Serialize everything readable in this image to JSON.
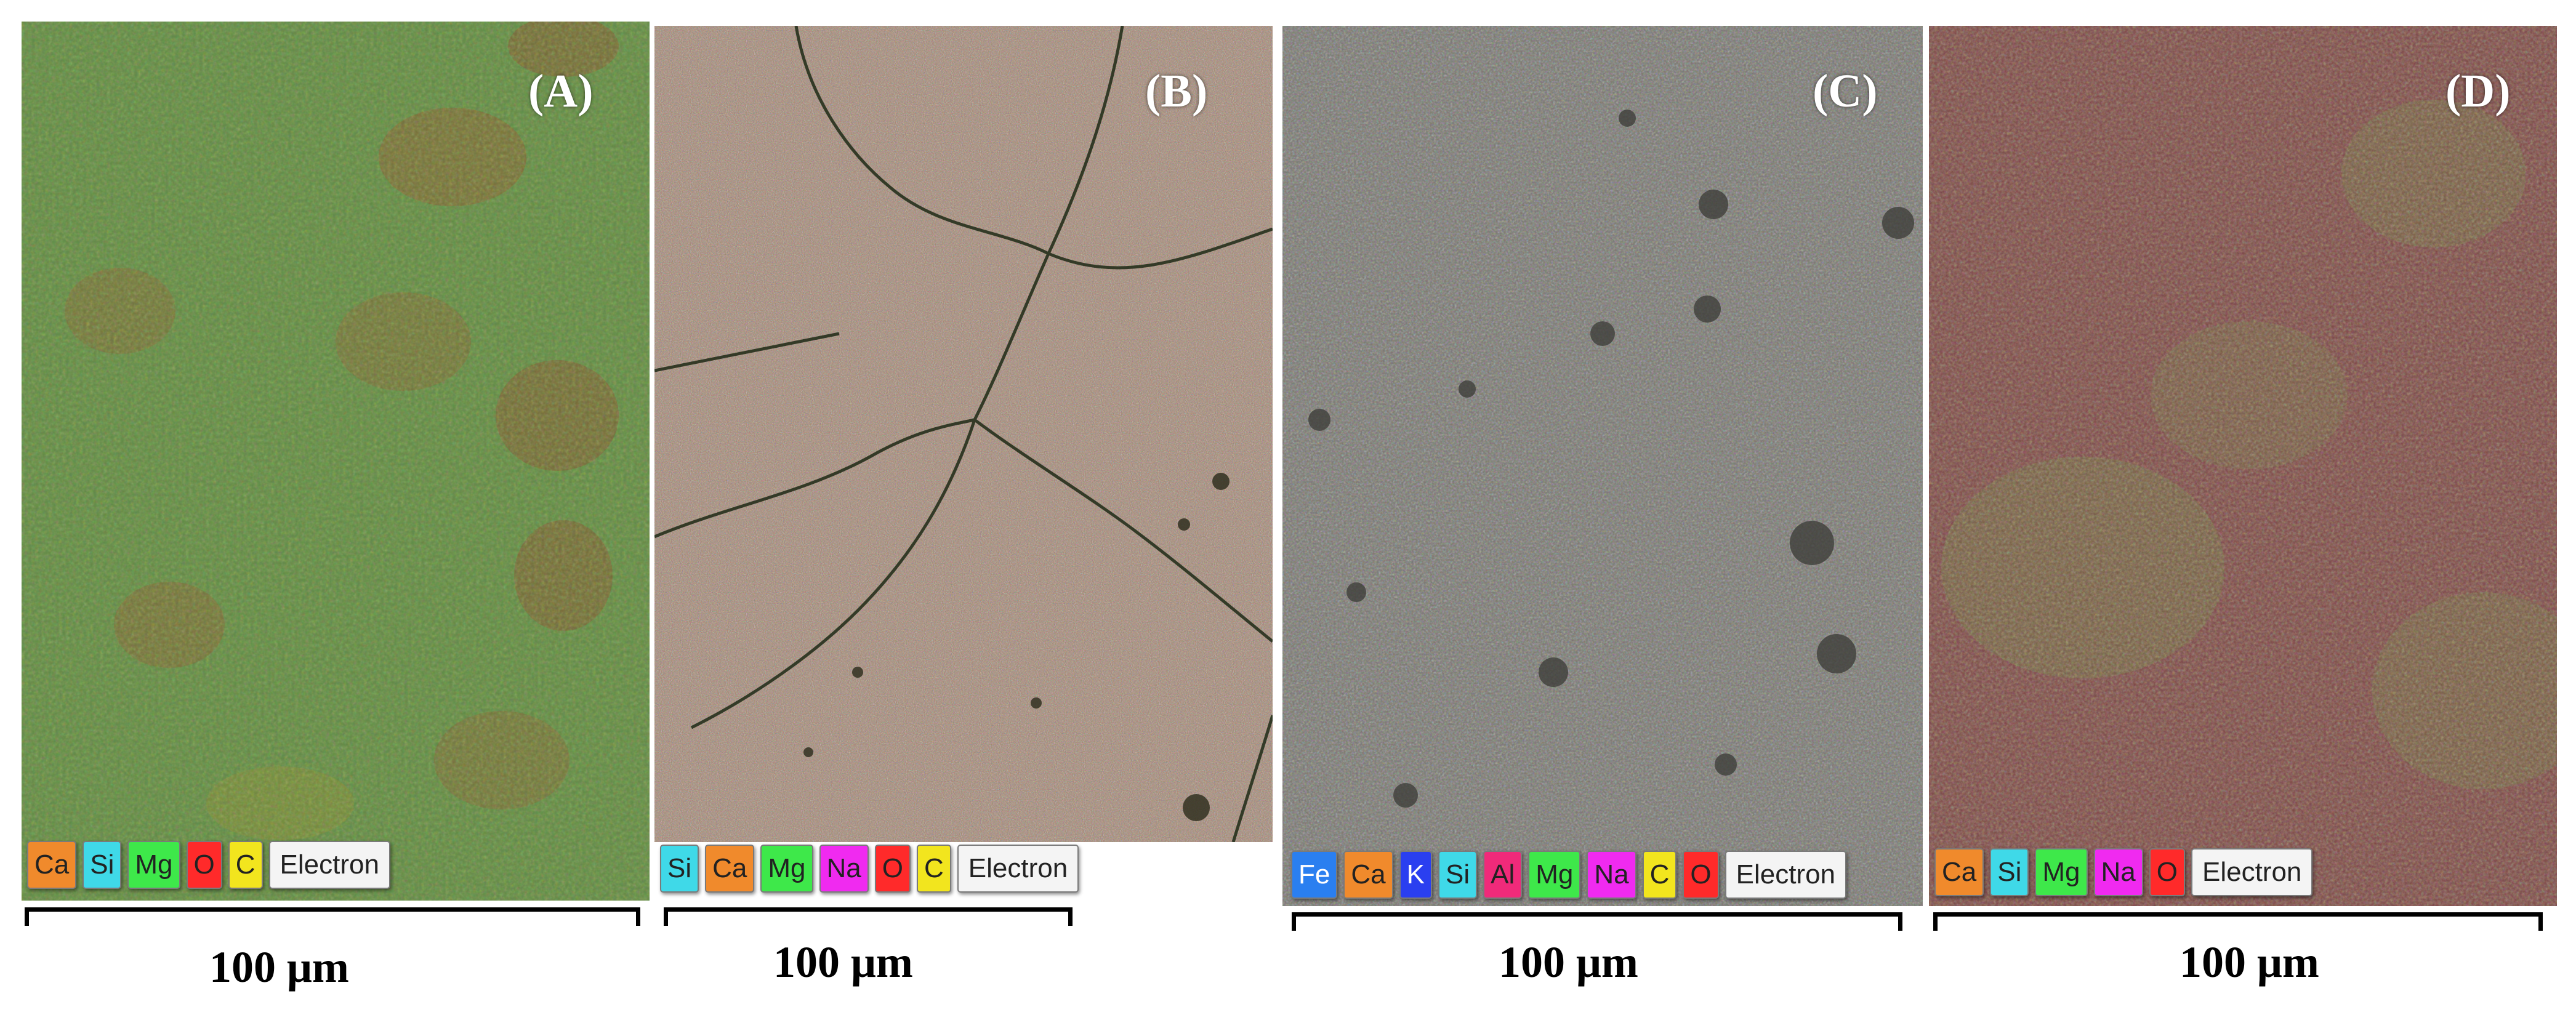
{
  "panels": [
    {
      "label": "(A)",
      "legend": [
        {
          "text": "Ca",
          "color": "#f08a2c"
        },
        {
          "text": "Si",
          "color": "#3fd9e8"
        },
        {
          "text": "Mg",
          "color": "#3ee84a"
        },
        {
          "text": "O",
          "color": "#ff2a2a"
        },
        {
          "text": "C",
          "color": "#f2e51e"
        },
        {
          "text": "Electron",
          "color": "#f4f4f4"
        }
      ],
      "scale": "100 μm",
      "base_color": "#6e8a3a"
    },
    {
      "label": "(B)",
      "legend": [
        {
          "text": "Si",
          "color": "#3fd9e8"
        },
        {
          "text": "Ca",
          "color": "#f08a2c"
        },
        {
          "text": "Mg",
          "color": "#3ee84a"
        },
        {
          "text": "Na",
          "color": "#f02af0"
        },
        {
          "text": "O",
          "color": "#ff2a2a"
        },
        {
          "text": "C",
          "color": "#f2e51e"
        },
        {
          "text": "Electron",
          "color": "#f4f4f4"
        }
      ],
      "scale": "100 μm",
      "base_color": "#a98a6a"
    },
    {
      "label": "(C)",
      "legend": [
        {
          "text": "Fe",
          "color": "#2a7ff0"
        },
        {
          "text": "Ca",
          "color": "#f08a2c"
        },
        {
          "text": "K",
          "color": "#2a3ff0"
        },
        {
          "text": "Si",
          "color": "#3fd9e8"
        },
        {
          "text": "Al",
          "color": "#f02a7a"
        },
        {
          "text": "Mg",
          "color": "#3ee84a"
        },
        {
          "text": "Na",
          "color": "#f02af0"
        },
        {
          "text": "C",
          "color": "#f2e51e"
        },
        {
          "text": "O",
          "color": "#ff2a2a"
        },
        {
          "text": "Electron",
          "color": "#f4f4f4"
        }
      ],
      "scale": "100 μm",
      "base_color": "#76766e"
    },
    {
      "label": "(D)",
      "legend": [
        {
          "text": "Ca",
          "color": "#f08a2c"
        },
        {
          "text": "Si",
          "color": "#3fd9e8"
        },
        {
          "text": "Mg",
          "color": "#3ee84a"
        },
        {
          "text": "Na",
          "color": "#f02af0"
        },
        {
          "text": "O",
          "color": "#ff2a2a"
        },
        {
          "text": "Electron",
          "color": "#f4f4f4"
        }
      ],
      "scale": "100 μm",
      "base_color": "#7e4a46"
    }
  ]
}
